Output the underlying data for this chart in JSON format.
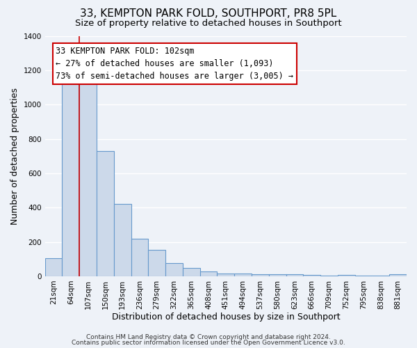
{
  "title": "33, KEMPTON PARK FOLD, SOUTHPORT, PR8 5PL",
  "subtitle": "Size of property relative to detached houses in Southport",
  "xlabel": "Distribution of detached houses by size in Southport",
  "ylabel": "Number of detached properties",
  "bar_labels": [
    "21sqm",
    "64sqm",
    "107sqm",
    "150sqm",
    "193sqm",
    "236sqm",
    "279sqm",
    "322sqm",
    "365sqm",
    "408sqm",
    "451sqm",
    "494sqm",
    "537sqm",
    "580sqm",
    "623sqm",
    "666sqm",
    "709sqm",
    "752sqm",
    "795sqm",
    "838sqm",
    "881sqm"
  ],
  "bar_values": [
    107,
    1160,
    1160,
    730,
    420,
    220,
    155,
    75,
    50,
    30,
    18,
    15,
    12,
    10,
    10,
    8,
    5,
    8,
    3,
    3,
    10
  ],
  "bar_color": "#ccd9ea",
  "bar_edge_color": "#6699cc",
  "bar_edge_width": 0.8,
  "redline_index": 2,
  "ylim": [
    0,
    1400
  ],
  "yticks": [
    0,
    200,
    400,
    600,
    800,
    1000,
    1200,
    1400
  ],
  "annotation_line1": "33 KEMPTON PARK FOLD: 102sqm",
  "annotation_line2": "← 27% of detached houses are smaller (1,093)",
  "annotation_line3": "73% of semi-detached houses are larger (3,005) →",
  "footer_line1": "Contains HM Land Registry data © Crown copyright and database right 2024.",
  "footer_line2": "Contains public sector information licensed under the Open Government Licence v3.0.",
  "background_color": "#eef2f8",
  "plot_bg_color": "#eef2f8",
  "grid_color": "#ffffff",
  "title_fontsize": 11,
  "subtitle_fontsize": 9.5,
  "axis_label_fontsize": 9,
  "tick_fontsize": 7.5,
  "footer_fontsize": 6.5,
  "annotation_fontsize": 8.5
}
